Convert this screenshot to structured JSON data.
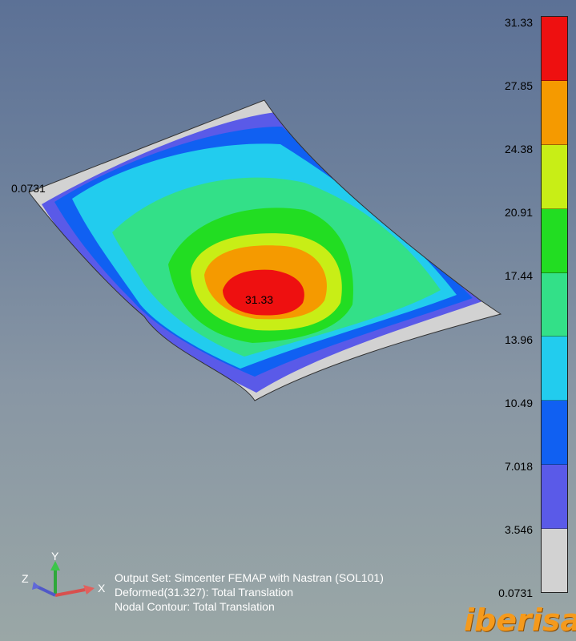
{
  "legend": {
    "ticks": [
      "31.33",
      "27.85",
      "24.38",
      "20.91",
      "17.44",
      "13.96",
      "10.49",
      "7.018",
      "3.546",
      "0.0731"
    ],
    "colors": [
      "#ee1010",
      "#f59a00",
      "#c8ee16",
      "#22dd22",
      "#33e088",
      "#22ccee",
      "#1060f2",
      "#5a5ae8",
      "#d2d2d2"
    ]
  },
  "plot": {
    "min_label": "0.0731",
    "max_label": "31.33"
  },
  "info": {
    "line1": "Output Set: Simcenter FEMAP with Nastran (SOL101)",
    "line2": "Deformed(31.327): Total Translation",
    "line3": "Nodal Contour: Total Translation"
  },
  "triad": {
    "x": "X",
    "y": "Y",
    "z": "Z"
  },
  "brand": "iberisa"
}
